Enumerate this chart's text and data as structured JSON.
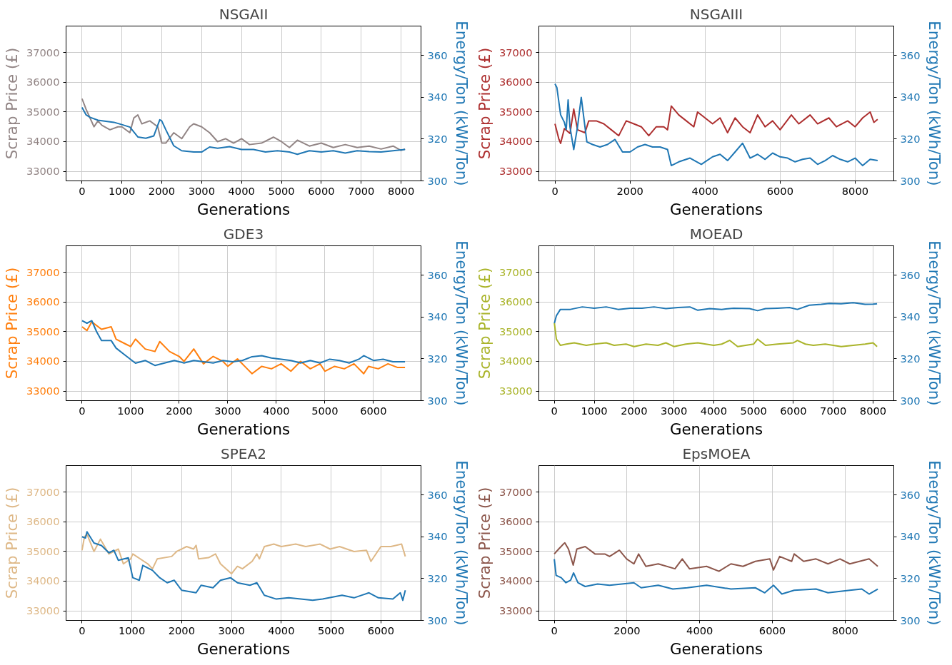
{
  "chart_data": [
    {
      "type": "line",
      "title": "NSGAII",
      "xlabel": "Generations",
      "ylabel": "Scrap Price (£)",
      "y2label": "Energy/Ton (kWh/Ton)",
      "xlim": [
        -400,
        8500
      ],
      "xticks": [
        0,
        1000,
        2000,
        3000,
        4000,
        5000,
        6000,
        7000,
        8000
      ],
      "ylim": [
        32675,
        37900
      ],
      "yticks": [
        33000,
        34000,
        35000,
        36000,
        37000
      ],
      "y2lim": [
        300,
        374
      ],
      "y2ticks": [
        300,
        320,
        340,
        360
      ],
      "grid": true,
      "series": [
        {
          "color": "#928585",
          "x": [
            0,
            100,
            200,
            300,
            400,
            500,
            700,
            900,
            1000,
            1200,
            1300,
            1400,
            1500,
            1700,
            1900,
            2000,
            2100,
            2300,
            2500,
            2700,
            2800,
            3000,
            3200,
            3400,
            3600,
            3800,
            4000,
            4200,
            4500,
            4800,
            5000,
            5200,
            5400,
            5700,
            6000,
            6300,
            6600,
            6900,
            7200,
            7500,
            7800,
            8000,
            8100
          ],
          "values": [
            35450,
            35100,
            34800,
            34500,
            34700,
            34550,
            34400,
            34500,
            34500,
            34300,
            34800,
            34900,
            34600,
            34700,
            34500,
            33950,
            33950,
            34300,
            34100,
            34500,
            34600,
            34500,
            34300,
            34000,
            34100,
            33950,
            34100,
            33900,
            33950,
            34150,
            34000,
            33800,
            34050,
            33850,
            33950,
            33800,
            33900,
            33800,
            33850,
            33750,
            33850,
            33700,
            33750
          ]
        },
        {
          "color": "#1f77b4",
          "axis": "y2",
          "x": [
            0,
            100,
            200,
            400,
            600,
            800,
            1000,
            1200,
            1400,
            1600,
            1800,
            1950,
            2000,
            2100,
            2300,
            2500,
            2800,
            3000,
            3200,
            3400,
            3700,
            4000,
            4300,
            4600,
            4900,
            5200,
            5400,
            5700,
            6000,
            6300,
            6600,
            6900,
            7200,
            7500,
            7800,
            8100
          ],
          "values": [
            335.1,
            331.6,
            330.4,
            329,
            328.5,
            328,
            326.9,
            325.7,
            321,
            320.4,
            321.5,
            329.2,
            328.6,
            324.5,
            316.8,
            314.4,
            313.8,
            313.8,
            316.2,
            315.6,
            316.4,
            315,
            315,
            313.8,
            314.4,
            313.8,
            312.7,
            314.4,
            313.8,
            314.4,
            313.3,
            314.4,
            314,
            313.8,
            314.4,
            315
          ]
        }
      ]
    },
    {
      "type": "line",
      "title": "NSGAIII",
      "xlabel": "Generations",
      "ylabel": "Scrap Price (£)",
      "y2label": "Energy/Ton (kWh/Ton)",
      "xlim": [
        -430,
        9030
      ],
      "xticks": [
        0,
        2000,
        4000,
        6000,
        8000
      ],
      "ylim": [
        32675,
        37900
      ],
      "yticks": [
        33000,
        34000,
        35000,
        36000,
        37000
      ],
      "y2lim": [
        300,
        374
      ],
      "y2ticks": [
        300,
        320,
        340,
        360
      ],
      "grid": true,
      "series": [
        {
          "color": "#ad2f2f",
          "x": [
            0,
            100,
            150,
            250,
            400,
            500,
            600,
            800,
            900,
            1100,
            1300,
            1500,
            1700,
            1900,
            2100,
            2300,
            2500,
            2700,
            2900,
            3000,
            3100,
            3300,
            3500,
            3700,
            3800,
            4000,
            4200,
            4400,
            4600,
            4800,
            5000,
            5200,
            5400,
            5600,
            5800,
            6000,
            6300,
            6500,
            6800,
            7000,
            7300,
            7500,
            7800,
            8000,
            8200,
            8400,
            8500,
            8600
          ],
          "values": [
            34600,
            34100,
            33940,
            34440,
            34275,
            35100,
            34400,
            34300,
            34700,
            34700,
            34600,
            34400,
            34200,
            34700,
            34600,
            34500,
            34200,
            34500,
            34500,
            34400,
            35200,
            34900,
            34700,
            34500,
            35000,
            34800,
            34600,
            34800,
            34300,
            34800,
            34500,
            34300,
            34900,
            34500,
            34700,
            34400,
            34900,
            34600,
            34900,
            34600,
            34800,
            34500,
            34700,
            34500,
            34800,
            35000,
            34650,
            34750
          ]
        },
        {
          "color": "#1f77b4",
          "axis": "y2",
          "x": [
            0,
            50,
            150,
            250,
            300,
            350,
            400,
            500,
            600,
            700,
            800,
            850,
            1000,
            1200,
            1400,
            1600,
            1800,
            2000,
            2200,
            2400,
            2600,
            2800,
            3000,
            3100,
            3300,
            3600,
            3900,
            4200,
            4400,
            4600,
            4800,
            5000,
            5200,
            5400,
            5600,
            5800,
            6000,
            6200,
            6400,
            6600,
            6800,
            7000,
            7200,
            7400,
            7600,
            7800,
            8000,
            8200,
            8400,
            8600
          ],
          "values": [
            346.4,
            344.6,
            331.6,
            328,
            324.5,
            338.7,
            325.7,
            315,
            325.7,
            339.9,
            325.7,
            318.6,
            317.4,
            316.2,
            317.4,
            319.8,
            313.8,
            313.8,
            316.2,
            317.4,
            316.2,
            316.2,
            315,
            307.3,
            309.1,
            310.9,
            307.9,
            311.5,
            312.7,
            309.7,
            313.8,
            318,
            310.9,
            312.7,
            310.3,
            313.3,
            311.5,
            310.9,
            309.1,
            310.3,
            310.9,
            307.9,
            309.7,
            312.1,
            310.3,
            309.1,
            310.9,
            307.3,
            310.3,
            309.7
          ]
        }
      ]
    },
    {
      "type": "line",
      "title": "GDE3",
      "xlabel": "Generations",
      "ylabel": "Scrap Price (£)",
      "y2label": "Energy/Ton (kWh/Ton)",
      "xlim": [
        -330,
        6980
      ],
      "xticks": [
        0,
        1000,
        2000,
        3000,
        4000,
        5000,
        6000
      ],
      "ylim": [
        32675,
        37900
      ],
      "yticks": [
        33000,
        34000,
        35000,
        36000,
        37000
      ],
      "y2lim": [
        300,
        374
      ],
      "y2ticks": [
        300,
        320,
        340,
        360
      ],
      "grid": true,
      "series": [
        {
          "color": "#ff7f0e",
          "x": [
            0,
            100,
            200,
            400,
            600,
            700,
            900,
            1000,
            1100,
            1300,
            1500,
            1600,
            1800,
            2000,
            2100,
            2300,
            2500,
            2700,
            2900,
            3000,
            3200,
            3400,
            3500,
            3700,
            3900,
            4100,
            4300,
            4500,
            4700,
            4900,
            5000,
            5200,
            5400,
            5600,
            5800,
            5900,
            6100,
            6300,
            6500,
            6650
          ],
          "values": [
            35167,
            35040,
            35333,
            35083,
            35167,
            34750,
            34583,
            34500,
            34750,
            34417,
            34333,
            34667,
            34333,
            34167,
            34000,
            34417,
            33917,
            34167,
            34000,
            33833,
            34083,
            33750,
            33583,
            33833,
            33750,
            33917,
            33667,
            34000,
            33750,
            33917,
            33667,
            33833,
            33750,
            33917,
            33583,
            33833,
            33750,
            33917,
            33792,
            33792
          ]
        },
        {
          "color": "#1f77b4",
          "axis": "y2",
          "x": [
            0,
            100,
            200,
            300,
            400,
            600,
            700,
            900,
            1100,
            1300,
            1500,
            1700,
            1900,
            2100,
            2300,
            2500,
            2700,
            2900,
            3100,
            3300,
            3500,
            3700,
            3900,
            4100,
            4300,
            4500,
            4700,
            4900,
            5100,
            5300,
            5500,
            5700,
            5800,
            6000,
            6200,
            6400,
            6650
          ],
          "values": [
            338.2,
            337,
            338.2,
            332.9,
            328.7,
            328.7,
            325.1,
            321.5,
            317.9,
            319.2,
            316.8,
            318,
            319.2,
            318,
            319.2,
            318.6,
            318,
            319.2,
            318.6,
            319.2,
            321,
            321.5,
            320.4,
            319.8,
            319.2,
            318,
            319.2,
            318,
            319.8,
            319.2,
            318,
            319.8,
            321.5,
            319.2,
            319.8,
            318.6,
            318.6
          ]
        }
      ]
    },
    {
      "type": "line",
      "title": "MOEAD",
      "xlabel": "Generations",
      "ylabel": "Scrap Price (£)",
      "y2label": "Energy/Ton (kWh/Ton)",
      "xlim": [
        -390,
        8520
      ],
      "xticks": [
        0,
        1000,
        2000,
        3000,
        4000,
        5000,
        6000,
        7000,
        8000
      ],
      "ylim": [
        32675,
        37900
      ],
      "yticks": [
        33000,
        34000,
        35000,
        36000,
        37000
      ],
      "y2lim": [
        300,
        374
      ],
      "y2ticks": [
        300,
        320,
        340,
        360
      ],
      "grid": true,
      "series": [
        {
          "color": "#aab42a",
          "x": [
            0,
            50,
            150,
            300,
            500,
            800,
            1000,
            1300,
            1500,
            1800,
            2000,
            2300,
            2600,
            2800,
            3000,
            3300,
            3600,
            4000,
            4200,
            4400,
            4600,
            5000,
            5100,
            5300,
            5600,
            6000,
            6100,
            6300,
            6500,
            6800,
            7200,
            7500,
            7800,
            8000,
            8100
          ],
          "values": [
            35292,
            34750,
            34542,
            34583,
            34625,
            34542,
            34583,
            34625,
            34542,
            34583,
            34500,
            34583,
            34542,
            34625,
            34500,
            34583,
            34625,
            34542,
            34583,
            34708,
            34500,
            34583,
            34750,
            34542,
            34583,
            34625,
            34708,
            34583,
            34542,
            34583,
            34500,
            34542,
            34583,
            34625,
            34500
          ]
        },
        {
          "color": "#1f77b4",
          "axis": "y2",
          "x": [
            0,
            50,
            150,
            400,
            700,
            1000,
            1300,
            1600,
            1900,
            2200,
            2500,
            2800,
            3100,
            3400,
            3600,
            3900,
            4200,
            4500,
            4900,
            5100,
            5300,
            5600,
            5900,
            6100,
            6400,
            6700,
            6900,
            7200,
            7500,
            7800,
            8000,
            8100
          ],
          "values": [
            337,
            340.6,
            343.6,
            343.6,
            344.8,
            344.2,
            344.8,
            343.6,
            344.2,
            344.2,
            344.8,
            344,
            344.5,
            344.8,
            343.2,
            344,
            343.6,
            344.2,
            344,
            343,
            344,
            344.2,
            344.5,
            343.6,
            345.6,
            346,
            346.5,
            346.3,
            346.8,
            346,
            346.1,
            346.3
          ]
        }
      ]
    },
    {
      "type": "line",
      "title": "SPEA2",
      "xlabel": "Generations",
      "ylabel": "Scrap Price (£)",
      "y2label": "Energy/Ton (kWh/Ton)",
      "xlim": [
        -320,
        6805
      ],
      "xticks": [
        0,
        1000,
        2000,
        3000,
        4000,
        5000,
        6000
      ],
      "ylim": [
        32675,
        37900
      ],
      "yticks": [
        33000,
        34000,
        35000,
        36000,
        37000
      ],
      "y2lim": [
        300,
        374
      ],
      "y2ticks": [
        300,
        320,
        340,
        360
      ],
      "grid": true,
      "series": [
        {
          "color": "#deb887",
          "x": [
            0,
            50,
            100,
            240,
            370,
            540,
            730,
            830,
            975,
            1020,
            1320,
            1415,
            1510,
            1800,
            1900,
            2100,
            2240,
            2290,
            2340,
            2540,
            2680,
            2780,
            3000,
            3120,
            3220,
            3415,
            3510,
            3560,
            3660,
            3850,
            4000,
            4290,
            4490,
            4780,
            4980,
            5170,
            5460,
            5710,
            5800,
            6000,
            6200,
            6415,
            6490
          ],
          "values": [
            35042,
            35500,
            35583,
            35000,
            35417,
            34917,
            35083,
            34583,
            34750,
            34917,
            34583,
            34417,
            34750,
            34833,
            35000,
            35167,
            35083,
            35208,
            34750,
            34792,
            34917,
            34583,
            34250,
            34500,
            34417,
            34667,
            34917,
            34750,
            35167,
            35250,
            35167,
            35250,
            35167,
            35250,
            35083,
            35167,
            35000,
            35042,
            34667,
            35167,
            35167,
            35250,
            34833
          ]
        },
        {
          "color": "#1f77b4",
          "axis": "y2",
          "x": [
            0,
            70,
            100,
            240,
            390,
            540,
            640,
            730,
            930,
            1020,
            1150,
            1220,
            1415,
            1560,
            1710,
            1850,
            2000,
            2290,
            2390,
            2630,
            2780,
            2980,
            3120,
            3370,
            3510,
            3660,
            3900,
            4150,
            4630,
            4830,
            5220,
            5460,
            5760,
            5950,
            6240,
            6390,
            6440,
            6490
          ],
          "values": [
            340,
            339.4,
            342.4,
            337,
            335.8,
            332.3,
            333.5,
            328.7,
            329.9,
            320.4,
            319.2,
            326.3,
            323.9,
            320.4,
            318,
            319.2,
            314.4,
            313.2,
            316.8,
            315.6,
            319.2,
            320.4,
            318,
            316.8,
            318,
            312,
            310.2,
            310.8,
            309.6,
            310.2,
            312,
            310.8,
            313.2,
            310.8,
            310.2,
            313.2,
            309.6,
            314.4
          ]
        }
      ]
    },
    {
      "type": "line",
      "title": "EpsMOEA",
      "xlabel": "Generations",
      "ylabel": "Scrap Price (£)",
      "y2label": "Energy/Ton (kWh/Ton)",
      "xlim": [
        -425,
        9340
      ],
      "xticks": [
        0,
        2000,
        4000,
        6000,
        8000
      ],
      "ylim": [
        32675,
        37900
      ],
      "yticks": [
        33000,
        34000,
        35000,
        36000,
        37000
      ],
      "y2lim": [
        300,
        374
      ],
      "y2ticks": [
        300,
        320,
        340,
        360
      ],
      "grid": true,
      "series": [
        {
          "color": "#8c564b",
          "x": [
            0,
            120,
            250,
            290,
            390,
            520,
            620,
            850,
            1120,
            1390,
            1520,
            1790,
            1990,
            2190,
            2320,
            2520,
            2860,
            3320,
            3520,
            3720,
            4190,
            4530,
            4860,
            5190,
            5530,
            5930,
            6030,
            6200,
            6530,
            6600,
            6860,
            7200,
            7530,
            7860,
            8130,
            8660,
            8900
          ],
          "values": [
            34917,
            35083,
            35250,
            35292,
            35083,
            34542,
            35083,
            35167,
            34917,
            34917,
            34833,
            35042,
            34750,
            34583,
            34917,
            34500,
            34583,
            34417,
            34750,
            34417,
            34500,
            34333,
            34583,
            34500,
            34667,
            34750,
            34375,
            34833,
            34667,
            34917,
            34667,
            34750,
            34583,
            34750,
            34583,
            34750,
            34500
          ]
        },
        {
          "color": "#1f77b4",
          "axis": "y2",
          "x": [
            0,
            50,
            190,
            320,
            450,
            530,
            650,
            850,
            1190,
            1520,
            2190,
            2390,
            2860,
            3260,
            3660,
            4190,
            4860,
            5530,
            5790,
            6030,
            6260,
            6600,
            7200,
            7530,
            8130,
            8460,
            8660,
            8900
          ],
          "values": [
            329.3,
            321.5,
            320.4,
            318,
            319.2,
            322.7,
            318,
            316.2,
            317.4,
            316.8,
            318,
            315.6,
            316.8,
            315,
            315.6,
            316.8,
            315,
            315.6,
            313.2,
            316.8,
            312.6,
            314.4,
            315,
            313.2,
            314.4,
            315,
            312.6,
            315
          ]
        }
      ]
    }
  ]
}
